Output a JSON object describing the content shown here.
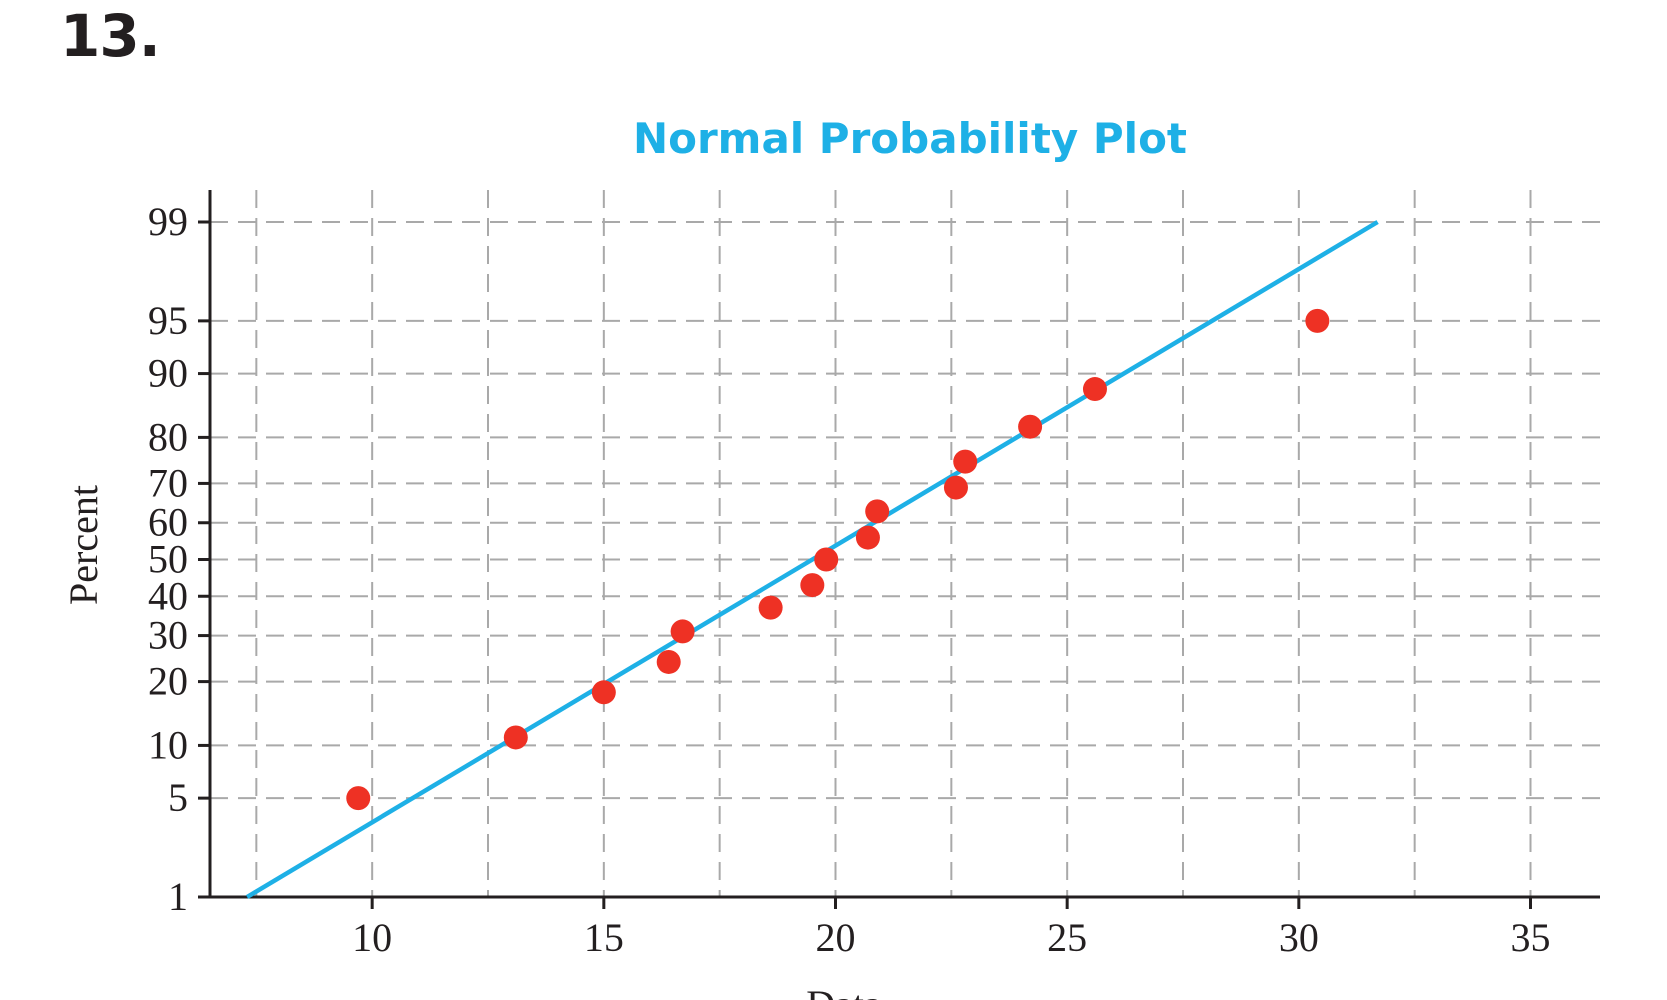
{
  "problem_number": "13.",
  "colors": {
    "title": "#1eb0e6",
    "fit_line": "#1eb0e6",
    "points": "#ee3124",
    "grid": "#a9a9a9",
    "axis": "#231f20"
  },
  "chart_data": {
    "type": "scatter",
    "title": "Normal Probability Plot",
    "xlabel": "Data",
    "ylabel": "Percent",
    "y_scale": "normal-probability",
    "xlim": [
      6.5,
      36.5
    ],
    "ylim": [
      1,
      99
    ],
    "grid": true,
    "legend": "none",
    "x_ticks": [
      10,
      15,
      20,
      25,
      30,
      35
    ],
    "x_minor_gridlines": [
      7.5,
      12.5,
      17.5,
      22.5,
      27.5,
      32.5
    ],
    "y_ticks": [
      1,
      5,
      10,
      20,
      30,
      40,
      50,
      60,
      70,
      80,
      90,
      95,
      99
    ],
    "series": [
      {
        "kind": "points",
        "x": [
          9.7,
          13.1,
          15.0,
          16.4,
          16.7,
          18.6,
          19.5,
          19.8,
          20.7,
          20.9,
          22.6,
          22.8,
          24.2,
          25.6,
          30.4
        ],
        "y": [
          5,
          11,
          18,
          24,
          31,
          37,
          43,
          50,
          56,
          63,
          69,
          75,
          82,
          88,
          95
        ]
      },
      {
        "kind": "fit-line",
        "x": [
          7.3,
          31.7
        ],
        "y": [
          1,
          99
        ]
      }
    ]
  }
}
